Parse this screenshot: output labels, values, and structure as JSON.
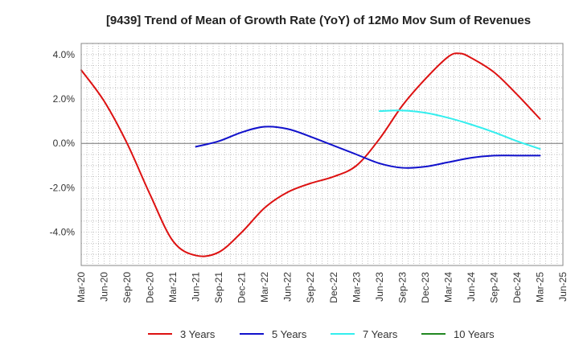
{
  "chart_data": {
    "type": "line",
    "title": "[9439]  Trend of Mean of Growth Rate (YoY) of 12Mo Mov Sum of Revenues",
    "xlabel": "",
    "ylabel": "",
    "x_ticks": [
      "Mar-20",
      "Jun-20",
      "Sep-20",
      "Dec-20",
      "Mar-21",
      "Jun-21",
      "Sep-21",
      "Dec-21",
      "Mar-22",
      "Jun-22",
      "Sep-22",
      "Dec-22",
      "Mar-23",
      "Jun-23",
      "Sep-23",
      "Dec-23",
      "Mar-24",
      "Jun-24",
      "Sep-24",
      "Dec-24",
      "Mar-25",
      "Jun-25"
    ],
    "y_ticks": [
      -4,
      -2,
      0,
      2,
      4
    ],
    "y_tick_labels": [
      "-4.0%",
      "-2.0%",
      "0.0%",
      "2.0%",
      "4.0%"
    ],
    "ylim": [
      -5.5,
      4.5
    ],
    "grid": true,
    "legend_position": "bottom",
    "series": [
      {
        "name": "3 Years",
        "color": "#dd1111",
        "points": [
          [
            0,
            3.3
          ],
          [
            1,
            1.9
          ],
          [
            2,
            0.0
          ],
          [
            3,
            -2.3
          ],
          [
            4,
            -4.4
          ],
          [
            5,
            -5.05
          ],
          [
            6,
            -4.9
          ],
          [
            7,
            -4.0
          ],
          [
            8,
            -2.9
          ],
          [
            9,
            -2.2
          ],
          [
            10,
            -1.8
          ],
          [
            11,
            -1.5
          ],
          [
            12,
            -1.0
          ],
          [
            13,
            0.2
          ],
          [
            14,
            1.7
          ],
          [
            15,
            2.9
          ],
          [
            16,
            3.9
          ],
          [
            16.5,
            4.05
          ],
          [
            17,
            3.85
          ],
          [
            18,
            3.2
          ],
          [
            19,
            2.2
          ],
          [
            20,
            1.1
          ]
        ]
      },
      {
        "name": "5 Years",
        "color": "#1111cc",
        "points": [
          [
            5,
            -0.15
          ],
          [
            6,
            0.1
          ],
          [
            7,
            0.5
          ],
          [
            8,
            0.75
          ],
          [
            9,
            0.65
          ],
          [
            10,
            0.3
          ],
          [
            11,
            -0.1
          ],
          [
            12,
            -0.5
          ],
          [
            13,
            -0.9
          ],
          [
            14,
            -1.1
          ],
          [
            15,
            -1.05
          ],
          [
            16,
            -0.85
          ],
          [
            17,
            -0.65
          ],
          [
            18,
            -0.55
          ],
          [
            19,
            -0.55
          ],
          [
            20,
            -0.55
          ]
        ]
      },
      {
        "name": "7 Years",
        "color": "#33eeee",
        "points": [
          [
            13,
            1.45
          ],
          [
            14,
            1.48
          ],
          [
            15,
            1.38
          ],
          [
            16,
            1.15
          ],
          [
            17,
            0.85
          ],
          [
            18,
            0.5
          ],
          [
            19,
            0.1
          ],
          [
            20,
            -0.25
          ]
        ]
      },
      {
        "name": "10 Years",
        "color": "#228822",
        "points": []
      }
    ]
  }
}
